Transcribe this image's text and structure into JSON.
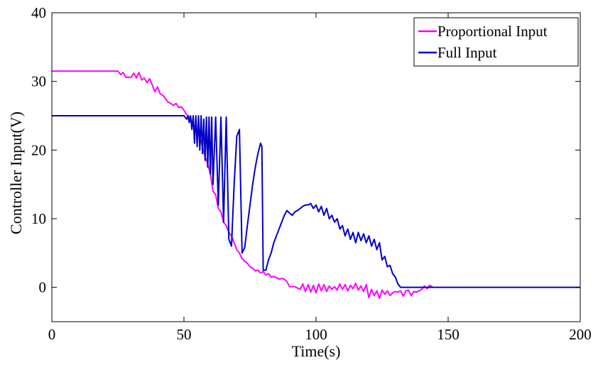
{
  "chart_data": {
    "type": "line",
    "xlabel": "Time(s)",
    "ylabel": "Controller Input(V)",
    "xlim": [
      0,
      200
    ],
    "ylim": [
      -5,
      40
    ],
    "xticks": [
      "0",
      "50",
      "100",
      "150",
      "200"
    ],
    "yticks": [
      "0",
      "10",
      "20",
      "30",
      "40"
    ],
    "grid": false,
    "legend_position": "top-right",
    "series": [
      {
        "name": "Proportional Input",
        "color": "#ff00ff",
        "points": [
          [
            0,
            31.5
          ],
          [
            25,
            31.5
          ],
          [
            26,
            31.0
          ],
          [
            27,
            31.3
          ],
          [
            28,
            30.6
          ],
          [
            30,
            30.6
          ],
          [
            31,
            31.2
          ],
          [
            32,
            30.5
          ],
          [
            33,
            31.3
          ],
          [
            34,
            30.2
          ],
          [
            35,
            30.5
          ],
          [
            36,
            29.8
          ],
          [
            37,
            30.4
          ],
          [
            38,
            29.5
          ],
          [
            39,
            28.5
          ],
          [
            40,
            29.2
          ],
          [
            41,
            28.2
          ],
          [
            42,
            28.0
          ],
          [
            43,
            27.5
          ],
          [
            44,
            27.0
          ],
          [
            45,
            26.8
          ],
          [
            46,
            26.5
          ],
          [
            47,
            26.8
          ],
          [
            48,
            26.2
          ],
          [
            49,
            26.3
          ],
          [
            50,
            25.8
          ],
          [
            51,
            25.2
          ],
          [
            52,
            24.8
          ],
          [
            53,
            24.0
          ],
          [
            54,
            23.5
          ],
          [
            55,
            22.5
          ],
          [
            56,
            21.8
          ],
          [
            57,
            20.5
          ],
          [
            58,
            19.0
          ],
          [
            59,
            18.0
          ],
          [
            60,
            16.5
          ],
          [
            61,
            14.0
          ],
          [
            62,
            13.5
          ],
          [
            63,
            11.5
          ],
          [
            64,
            11.0
          ],
          [
            65,
            9.5
          ],
          [
            66,
            9.0
          ],
          [
            67,
            8.0
          ],
          [
            68,
            7.5
          ],
          [
            69,
            6.5
          ],
          [
            70,
            5.5
          ],
          [
            71,
            5.0
          ],
          [
            72,
            4.2
          ],
          [
            73,
            3.8
          ],
          [
            74,
            3.5
          ],
          [
            75,
            3.0
          ],
          [
            76,
            2.8
          ],
          [
            77,
            2.4
          ],
          [
            78,
            2.5
          ],
          [
            79,
            2.1
          ],
          [
            80,
            2.3
          ],
          [
            81,
            1.8
          ],
          [
            82,
            2.0
          ],
          [
            83,
            1.5
          ],
          [
            84,
            1.6
          ],
          [
            85,
            1.4
          ],
          [
            86,
            1.2
          ],
          [
            87,
            1.3
          ],
          [
            88,
            1.2
          ],
          [
            89,
            0.8
          ],
          [
            90,
            0.1
          ],
          [
            92,
            0.1
          ],
          [
            94,
            -0.3
          ],
          [
            95,
            0.5
          ],
          [
            96,
            -0.6
          ],
          [
            97,
            0.4
          ],
          [
            98,
            -0.7
          ],
          [
            99,
            0.3
          ],
          [
            100,
            -0.8
          ],
          [
            101,
            0.5
          ],
          [
            102,
            -0.5
          ],
          [
            103,
            0.4
          ],
          [
            104,
            -0.6
          ],
          [
            105,
            0.2
          ],
          [
            106,
            -0.3
          ],
          [
            107,
            0.1
          ],
          [
            108,
            -0.4
          ],
          [
            109,
            0.5
          ],
          [
            110,
            -0.3
          ],
          [
            111,
            0.4
          ],
          [
            112,
            -0.5
          ],
          [
            113,
            0.3
          ],
          [
            114,
            -0.2
          ],
          [
            115,
            0.6
          ],
          [
            116,
            -0.4
          ],
          [
            117,
            0.2
          ],
          [
            118,
            -0.6
          ],
          [
            119,
            0.4
          ],
          [
            120,
            -1.5
          ],
          [
            121,
            -0.3
          ],
          [
            122,
            -1.2
          ],
          [
            123,
            -0.5
          ],
          [
            124,
            -1.6
          ],
          [
            125,
            -0.4
          ],
          [
            126,
            -1.0
          ],
          [
            127,
            -0.5
          ],
          [
            128,
            -1.2
          ],
          [
            129,
            -0.8
          ],
          [
            130,
            -0.6
          ],
          [
            131,
            -0.7
          ],
          [
            132,
            -0.5
          ],
          [
            133,
            -1.3
          ],
          [
            134,
            -0.5
          ],
          [
            135,
            -0.4
          ],
          [
            136,
            -1.2
          ],
          [
            137,
            -0.6
          ],
          [
            138,
            -0.7
          ],
          [
            139,
            -0.5
          ],
          [
            140,
            -0.3
          ],
          [
            141,
            0.2
          ],
          [
            142,
            -0.2
          ],
          [
            143,
            0.3
          ],
          [
            144,
            0.1
          ]
        ]
      },
      {
        "name": "Full Input",
        "color": "#0000c8",
        "points": [
          [
            0,
            25
          ],
          [
            50,
            25
          ],
          [
            51,
            24.5
          ],
          [
            51.5,
            25
          ],
          [
            52,
            24.0
          ],
          [
            52.5,
            25
          ],
          [
            53,
            23.0
          ],
          [
            53.5,
            25
          ],
          [
            54,
            21.0
          ],
          [
            54.5,
            25
          ],
          [
            55,
            20.5
          ],
          [
            55.5,
            25
          ],
          [
            56,
            20.0
          ],
          [
            56.5,
            25
          ],
          [
            57,
            19.5
          ],
          [
            57.5,
            24.5
          ],
          [
            58,
            18.5
          ],
          [
            58.5,
            24.8
          ],
          [
            59,
            17.5
          ],
          [
            59.5,
            24.8
          ],
          [
            60,
            16.5
          ],
          [
            60.5,
            24.8
          ],
          [
            61,
            15.0
          ],
          [
            62,
            24.8
          ],
          [
            63,
            12.0
          ],
          [
            64,
            24.8
          ],
          [
            65,
            9.5
          ],
          [
            66,
            24.8
          ],
          [
            67,
            7.0
          ],
          [
            68,
            6.0
          ],
          [
            69,
            15.0
          ],
          [
            70,
            22.0
          ],
          [
            71,
            23.0
          ],
          [
            72,
            5.0
          ],
          [
            73,
            5.8
          ],
          [
            74,
            9.0
          ],
          [
            75,
            12.0
          ],
          [
            76,
            15.0
          ],
          [
            77,
            17.5
          ],
          [
            78,
            19.5
          ],
          [
            79,
            21.0
          ],
          [
            79.5,
            20.5
          ],
          [
            80,
            2.5
          ],
          [
            81,
            2.5
          ],
          [
            82,
            4.0
          ],
          [
            83,
            5.0
          ],
          [
            84,
            6.5
          ],
          [
            85,
            7.5
          ],
          [
            86,
            8.5
          ],
          [
            87,
            9.5
          ],
          [
            88,
            10.5
          ],
          [
            89,
            11.2
          ],
          [
            90,
            10.8
          ],
          [
            91,
            10.5
          ],
          [
            92,
            11.0
          ],
          [
            93,
            11.2
          ],
          [
            94,
            11.5
          ],
          [
            95,
            11.8
          ],
          [
            96,
            12.0
          ],
          [
            97,
            12.0
          ],
          [
            98,
            12.2
          ],
          [
            99,
            11.5
          ],
          [
            100,
            12.0
          ],
          [
            101,
            11.0
          ],
          [
            102,
            11.8
          ],
          [
            103,
            10.5
          ],
          [
            104,
            11.5
          ],
          [
            105,
            10.0
          ],
          [
            106,
            10.5
          ],
          [
            107,
            9.5
          ],
          [
            108,
            10.0
          ],
          [
            109,
            8.5
          ],
          [
            110,
            9.0
          ],
          [
            111,
            7.5
          ],
          [
            112,
            8.5
          ],
          [
            113,
            7.0
          ],
          [
            114,
            8.0
          ],
          [
            115,
            6.5
          ],
          [
            116,
            8.0
          ],
          [
            117,
            6.8
          ],
          [
            118,
            7.8
          ],
          [
            119,
            6.5
          ],
          [
            120,
            7.5
          ],
          [
            121,
            6.0
          ],
          [
            122,
            7.0
          ],
          [
            123,
            5.5
          ],
          [
            124,
            6.5
          ],
          [
            125,
            4.0
          ],
          [
            126,
            4.5
          ],
          [
            127,
            3.0
          ],
          [
            128,
            3.2
          ],
          [
            129,
            2.0
          ],
          [
            130,
            1.5
          ],
          [
            131,
            0.5
          ],
          [
            132,
            0
          ],
          [
            200,
            0
          ]
        ]
      }
    ]
  }
}
